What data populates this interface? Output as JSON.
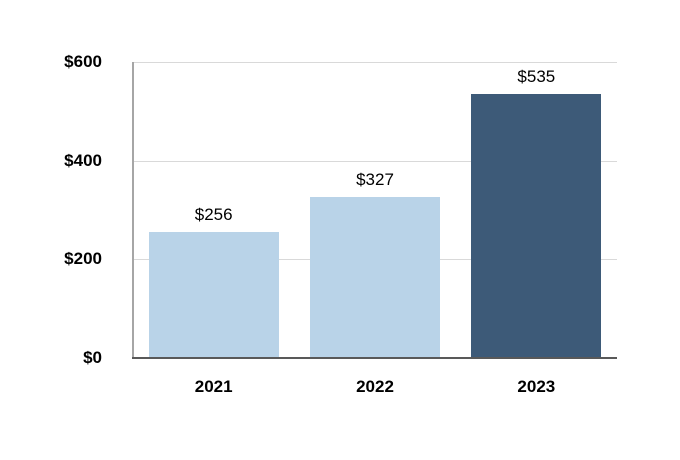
{
  "chart_data": {
    "type": "bar",
    "title": "",
    "xlabel": "",
    "ylabel": "",
    "categories": [
      "2021",
      "2022",
      "2023"
    ],
    "values": [
      256,
      327,
      535
    ],
    "value_labels": [
      "$256",
      "$327",
      "$535"
    ],
    "y_tick_labels": [
      "$600",
      "$400",
      "$200",
      "$0"
    ],
    "y_tick_values": [
      600,
      400,
      200,
      0
    ],
    "ylim": [
      0,
      600
    ],
    "grid": true,
    "legend": false,
    "bar_colors": [
      "#B9D3E8",
      "#B9D3E8",
      "#3D5A78"
    ],
    "colors": {
      "gridline": "#D9D9D9",
      "y_axis_line": "#A6A6A6",
      "x_axis_line": "#595959",
      "text": "#000000",
      "background": "#FFFFFF"
    }
  }
}
